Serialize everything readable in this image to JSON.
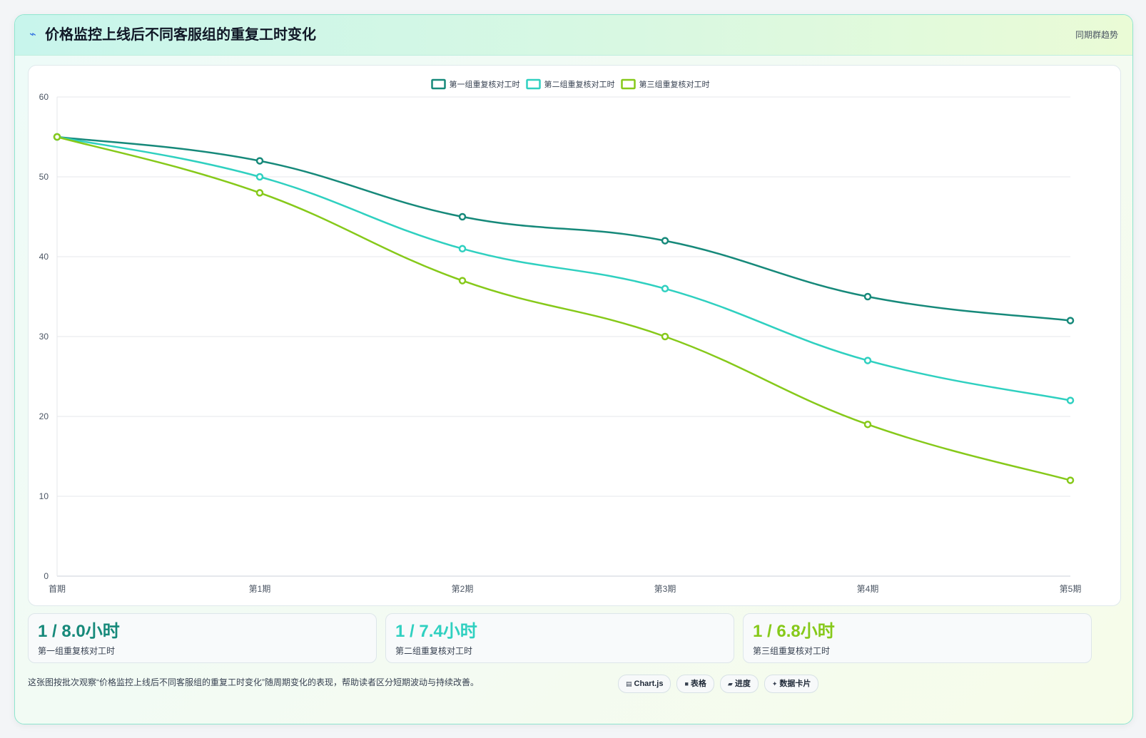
{
  "header": {
    "icon": "sparkle-icon",
    "title": "价格监控上线后不同客服组的重复工时变化",
    "tag": "同期群趋势"
  },
  "colors": {
    "series1": "#16897a",
    "series2": "#2fd0c0",
    "series3": "#86c91a",
    "grid": "#e5e7eb",
    "axis_text": "#4b5563"
  },
  "chart_data": {
    "type": "line",
    "categories": [
      "首期",
      "第1期",
      "第2期",
      "第3期",
      "第4期",
      "第5期"
    ],
    "series": [
      {
        "name": "第一组重复核对工时",
        "values": [
          55,
          52,
          45,
          42,
          35,
          32
        ]
      },
      {
        "name": "第二组重复核对工时",
        "values": [
          55,
          50,
          41,
          36,
          27,
          22
        ]
      },
      {
        "name": "第三组重复核对工时",
        "values": [
          55,
          48,
          37,
          30,
          19,
          12
        ]
      }
    ],
    "ylim": [
      0,
      60
    ],
    "yticks": [
      0,
      10,
      20,
      30,
      40,
      50,
      60
    ],
    "grid": true,
    "legend_position": "top-center",
    "smooth": true
  },
  "stats": [
    {
      "value": "1 / 8.0小时",
      "label": "第一组重复核对工时"
    },
    {
      "value": "1 / 7.4小时",
      "label": "第二组重复核对工时"
    },
    {
      "value": "1 / 6.8小时",
      "label": "第三组重复核对工时"
    }
  ],
  "footnote": "这张图按批次观察“价格监控上线后不同客服组的重复工时变化”随周期变化的表现，帮助读者区分短期波动与持续改善。",
  "chips": [
    {
      "icon": "chart-icon",
      "glyph": "▤",
      "label": "Chart.js"
    },
    {
      "icon": "table-icon",
      "glyph": "■",
      "label": "表格"
    },
    {
      "icon": "progress-icon",
      "glyph": "▰",
      "label": "进度"
    },
    {
      "icon": "card-icon",
      "glyph": "✦",
      "label": "数据卡片"
    }
  ]
}
